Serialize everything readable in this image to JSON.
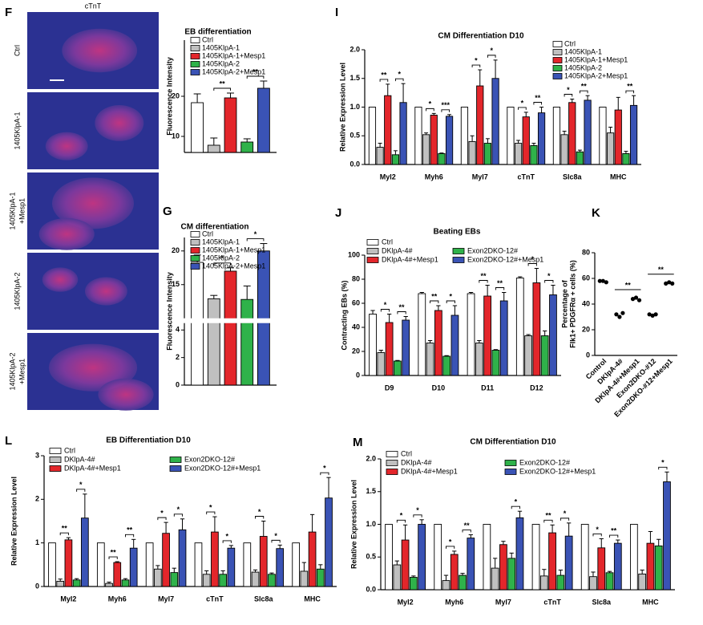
{
  "image_panel": {
    "panel_label": "F",
    "title": "cTnT",
    "rows": [
      [
        "Ctrl"
      ],
      [
        "1405KlpA-1"
      ],
      [
        "1405KlpA-1",
        "+Mesp1"
      ],
      [
        "1405KlpA-2"
      ],
      [
        "1405KlpA-2",
        "+Mesp1"
      ]
    ]
  },
  "chart_data": [
    {
      "type": "bar",
      "title": "EB differentiation",
      "y_label": "Fluorescence Intensity",
      "categories": [
        null
      ],
      "ylim": [
        6,
        34
      ],
      "yticks": [
        10,
        20
      ],
      "legend_columns": 1,
      "series": [
        {
          "name": "Ctrl",
          "color": "#ffffff",
          "values": [
            18.4
          ],
          "errors": [
            2.2
          ]
        },
        {
          "name": "1405KlpA-1",
          "color": "#c0c0c0",
          "values": [
            7.8
          ],
          "errors": [
            1.8
          ]
        },
        {
          "name": "1405KlpA-1+Mesp1",
          "color": "#e3262b",
          "values": [
            19.6
          ],
          "errors": [
            1.2
          ]
        },
        {
          "name": "1405KlpA-2",
          "color": "#2fb24a",
          "values": [
            8.6
          ],
          "errors": [
            0.8
          ]
        },
        {
          "name": "1405KlpA-2+Mesp1",
          "color": "#3a53b5",
          "values": [
            22
          ],
          "errors": [
            1.8
          ]
        }
      ],
      "annotations": [
        {
          "text": "**",
          "category": 0,
          "pair": [
            1,
            2
          ]
        },
        {
          "text": "**",
          "category": 0,
          "pair": [
            3,
            4
          ]
        }
      ]
    },
    {
      "type": "bar",
      "panel_label": "G",
      "title": "CM differentiation",
      "y_label": "Fluorescence Intensity",
      "categories": [
        null
      ],
      "ylim": [
        0,
        22
      ],
      "yticks": [
        0,
        2,
        4,
        15,
        20
      ],
      "axis_break": [
        4.5,
        10
      ],
      "legend_columns": 1,
      "series": [
        {
          "name": "Ctrl",
          "color": "#ffffff",
          "values": [
            18.3
          ],
          "errors": [
            1.1
          ]
        },
        {
          "name": "1405KlpA-1",
          "color": "#c0c0c0",
          "values": [
            12.9
          ],
          "errors": [
            0.5
          ]
        },
        {
          "name": "1405KlpA-1+Mesp1",
          "color": "#e3262b",
          "values": [
            17.0
          ],
          "errors": [
            0.5
          ]
        },
        {
          "name": "1405KlpA-2",
          "color": "#2fb24a",
          "values": [
            12.8
          ],
          "errors": [
            2.0
          ]
        },
        {
          "name": "1405KlpA-2+Mesp1",
          "color": "#3a53b5",
          "values": [
            20.0
          ],
          "errors": [
            1.1
          ]
        }
      ],
      "annotations": [
        {
          "text": "*",
          "category": 0,
          "pair": [
            1,
            2
          ]
        },
        {
          "text": "*",
          "category": 0,
          "pair": [
            3,
            4
          ]
        }
      ]
    },
    {
      "type": "bar",
      "panel_label": "I",
      "title": "CM Differentiation D10",
      "y_label": "Relative Expression Level",
      "categories": [
        "Myl2",
        "Myh6",
        "Myl7",
        "cTnT",
        "Slc8a",
        "MHC"
      ],
      "ylim": [
        0,
        2
      ],
      "yticks": [
        {
          "value": 0,
          "label": "0.0"
        },
        0.5,
        {
          "value": 1,
          "label": "1.0"
        },
        1.5,
        {
          "value": 2,
          "label": "2.0"
        }
      ],
      "legend_columns": 1,
      "series": [
        {
          "name": "Ctrl",
          "color": "#ffffff",
          "values": [
            1,
            1,
            1,
            1,
            1,
            1
          ]
        },
        {
          "name": "1405KlpA-1",
          "color": "#c0c0c0",
          "values": [
            0.3,
            0.52,
            0.4,
            0.37,
            0.52,
            0.55
          ],
          "errors": [
            0.07,
            0.03,
            0.1,
            0.05,
            0.06,
            0.1
          ]
        },
        {
          "name": "1405KlpA-1+Mesp1",
          "color": "#e3262b",
          "values": [
            1.2,
            0.86,
            1.37,
            0.83,
            1.08,
            0.95
          ],
          "errors": [
            0.2,
            0.03,
            0.28,
            0.08,
            0.06,
            0.22
          ]
        },
        {
          "name": "1405KlpA-2",
          "color": "#2fb24a",
          "values": [
            0.17,
            0.19,
            0.37,
            0.33,
            0.22,
            0.19
          ],
          "errors": [
            0.07,
            0.01,
            0.08,
            0.04,
            0.03,
            0.04
          ]
        },
        {
          "name": "1405KlpA-2+Mesp1",
          "color": "#3a53b5",
          "values": [
            1.08,
            0.84,
            1.5,
            0.9,
            1.12,
            1.03
          ],
          "errors": [
            0.33,
            0.03,
            0.32,
            0.1,
            0.08,
            0.17
          ]
        }
      ],
      "annotations": [
        {
          "text": "**",
          "category": 0,
          "pair": [
            1,
            2
          ]
        },
        {
          "text": "*",
          "category": 0,
          "pair": [
            3,
            4
          ]
        },
        {
          "text": "*",
          "category": 1,
          "pair": [
            1,
            2
          ]
        },
        {
          "text": "***",
          "category": 1,
          "pair": [
            3,
            4
          ]
        },
        {
          "text": "*",
          "category": 2,
          "pair": [
            1,
            2
          ]
        },
        {
          "text": "*",
          "category": 2,
          "pair": [
            3,
            4
          ]
        },
        {
          "text": "*",
          "category": 3,
          "pair": [
            1,
            2
          ]
        },
        {
          "text": "**",
          "category": 3,
          "pair": [
            3,
            4
          ]
        },
        {
          "text": "*",
          "category": 4,
          "pair": [
            1,
            2
          ]
        },
        {
          "text": "**",
          "category": 4,
          "pair": [
            3,
            4
          ]
        },
        {
          "text": "**",
          "category": 5,
          "pair": [
            3,
            4
          ]
        }
      ]
    },
    {
      "type": "bar",
      "panel_label": "J",
      "title": "Beating EBs",
      "y_label": "Contracting EBs (%)",
      "categories": [
        "D9",
        "D10",
        "D11",
        "D12"
      ],
      "ylim": [
        0,
        100
      ],
      "yticks": [
        0,
        20,
        40,
        60,
        80,
        100
      ],
      "legend_columns": 2,
      "series": [
        {
          "name": "Ctrl",
          "color": "#ffffff",
          "values": [
            51,
            68,
            68,
            81
          ],
          "errors": [
            3,
            1,
            1,
            1
          ]
        },
        {
          "name": "DKlpA-4#",
          "color": "#c0c0c0",
          "values": [
            19,
            27,
            27,
            33
          ],
          "errors": [
            2,
            2,
            2,
            1
          ]
        },
        {
          "name": "DKlpA-4#+Mesp1",
          "color": "#e3262b",
          "values": [
            44,
            54,
            66,
            77
          ],
          "errors": [
            7,
            4,
            9,
            12
          ]
        },
        {
          "name": "Exon2DKO-12#",
          "color": "#2fb24a",
          "values": [
            12,
            16,
            21,
            33
          ],
          "errors": [
            0.5,
            0.5,
            0.5,
            4
          ]
        },
        {
          "name": "Exon2DKO-12#+Mesp1",
          "color": "#3a53b5",
          "values": [
            46,
            50,
            62,
            67
          ],
          "errors": [
            3,
            8,
            7,
            8
          ]
        }
      ],
      "annotations": [
        {
          "text": "*",
          "category": 0,
          "pair": [
            1,
            2
          ]
        },
        {
          "text": "**",
          "category": 0,
          "pair": [
            3,
            4
          ]
        },
        {
          "text": "**",
          "category": 1,
          "pair": [
            1,
            2
          ]
        },
        {
          "text": "*",
          "category": 1,
          "pair": [
            3,
            4
          ]
        },
        {
          "text": "**",
          "category": 2,
          "pair": [
            1,
            2
          ]
        },
        {
          "text": "**",
          "category": 2,
          "pair": [
            3,
            4
          ]
        },
        {
          "text": "*",
          "category": 3,
          "pair": [
            1,
            2
          ]
        },
        {
          "text": "*",
          "category": 3,
          "pair": [
            3,
            4
          ]
        }
      ]
    },
    {
      "type": "dot",
      "panel_label": "K",
      "y_label": [
        "Percentage of",
        "Flk1+ PDGFRα + cells (%)"
      ],
      "categories": [
        "Control",
        "DKlpA-4#",
        "DKlpA-4#+Mesp1",
        "Exon2DKO-#12",
        "Exon2DKO-#12+Mesp1"
      ],
      "values": [
        [
          58,
          58,
          57
        ],
        [
          32,
          30,
          33
        ],
        [
          44,
          45,
          43
        ],
        [
          32,
          31,
          32
        ],
        [
          56,
          57,
          56
        ]
      ],
      "color": "#000000",
      "ylim": [
        0,
        80
      ],
      "yticks": [
        0,
        20,
        40,
        60,
        80
      ],
      "annotations": [
        {
          "text": "**",
          "pair": [
            1,
            2
          ]
        },
        {
          "text": "**",
          "pair": [
            3,
            4
          ]
        }
      ]
    },
    {
      "type": "bar",
      "panel_label": "L",
      "title": "EB Differentiation D10",
      "y_label": "Relative Expression Level",
      "categories": [
        "Myl2",
        "Myh6",
        "Myl7",
        "cTnT",
        "Slc8a",
        "MHC"
      ],
      "ylim": [
        0,
        3
      ],
      "yticks": [
        0,
        1,
        2,
        3
      ],
      "legend_columns": 2,
      "series": [
        {
          "name": "Ctrl",
          "color": "#ffffff",
          "values": [
            1,
            1,
            1,
            1,
            1,
            1
          ]
        },
        {
          "name": "DKlpA-4#",
          "color": "#c0c0c0",
          "values": [
            0.12,
            0.07,
            0.4,
            0.28,
            0.33,
            0.35
          ],
          "errors": [
            0.05,
            0.03,
            0.08,
            0.08,
            0.05,
            0.2
          ]
        },
        {
          "name": "DKlpA-4#+Mesp1",
          "color": "#e3262b",
          "values": [
            1.07,
            0.55,
            1.22,
            1.25,
            1.15,
            1.25
          ],
          "errors": [
            0.05,
            0.02,
            0.25,
            0.35,
            0.35,
            0.4
          ]
        },
        {
          "name": "Exon2DKO-12#",
          "color": "#2fb24a",
          "values": [
            0.15,
            0.15,
            0.32,
            0.28,
            0.28,
            0.4
          ],
          "errors": [
            0.03,
            0.03,
            0.1,
            0.08,
            0.03,
            0.1
          ]
        },
        {
          "name": "Exon2DKO-12#+Mesp1",
          "color": "#3a53b5",
          "values": [
            1.57,
            0.88,
            1.3,
            0.88,
            0.87,
            2.03
          ],
          "errors": [
            0.55,
            0.2,
            0.25,
            0.06,
            0.08,
            0.47
          ]
        }
      ],
      "annotations": [
        {
          "text": "**",
          "category": 0,
          "pair": [
            1,
            2
          ]
        },
        {
          "text": "*",
          "category": 0,
          "pair": [
            3,
            4
          ]
        },
        {
          "text": "**",
          "category": 1,
          "pair": [
            1,
            2
          ]
        },
        {
          "text": "**",
          "category": 1,
          "pair": [
            3,
            4
          ]
        },
        {
          "text": "*",
          "category": 2,
          "pair": [
            1,
            2
          ]
        },
        {
          "text": "*",
          "category": 2,
          "pair": [
            3,
            4
          ]
        },
        {
          "text": "*",
          "category": 3,
          "pair": [
            1,
            2
          ]
        },
        {
          "text": "*",
          "category": 3,
          "pair": [
            3,
            4
          ]
        },
        {
          "text": "*",
          "category": 4,
          "pair": [
            1,
            2
          ]
        },
        {
          "text": "*",
          "category": 4,
          "pair": [
            3,
            4
          ]
        },
        {
          "text": "*",
          "category": 5,
          "pair": [
            3,
            4
          ]
        }
      ]
    },
    {
      "type": "bar",
      "panel_label": "M",
      "title": "CM Differentiation D10",
      "y_label": "Relative Expression Level",
      "categories": [
        "Myl2",
        "Myh6",
        "Myl7",
        "cTnT",
        "Slc8a",
        "MHC"
      ],
      "ylim": [
        0,
        2
      ],
      "yticks": [
        {
          "value": 0,
          "label": "0.0"
        },
        0.5,
        {
          "value": 1,
          "label": "1.0"
        },
        1.5,
        {
          "value": 2,
          "label": "2.0"
        }
      ],
      "legend_columns": 2,
      "series": [
        {
          "name": "Ctrl",
          "color": "#ffffff",
          "values": [
            1,
            1,
            1,
            1,
            1,
            1
          ]
        },
        {
          "name": "DKlpA-4#",
          "color": "#c0c0c0",
          "values": [
            0.38,
            0.14,
            0.33,
            0.21,
            0.2,
            0.24
          ],
          "errors": [
            0.06,
            0.08,
            0.15,
            0.1,
            0.07,
            0.06
          ]
        },
        {
          "name": "DKlpA-4#+Mesp1",
          "color": "#e3262b",
          "values": [
            0.76,
            0.54,
            0.69,
            0.87,
            0.64,
            0.71
          ],
          "errors": [
            0.23,
            0.05,
            0.05,
            0.12,
            0.14,
            0.18
          ]
        },
        {
          "name": "Exon2DKO-12#",
          "color": "#2fb24a",
          "values": [
            0.19,
            0.22,
            0.48,
            0.22,
            0.26,
            0.67
          ],
          "errors": [
            0.02,
            0.03,
            0.08,
            0.08,
            0.02,
            0.1
          ]
        },
        {
          "name": "Exon2DKO-12#+Mesp1",
          "color": "#3a53b5",
          "values": [
            1.0,
            0.79,
            1.1,
            0.82,
            0.71,
            1.65
          ],
          "errors": [
            0.07,
            0.05,
            0.1,
            0.2,
            0.05,
            0.15
          ]
        }
      ],
      "annotations": [
        {
          "text": "*",
          "category": 0,
          "pair": [
            1,
            2
          ]
        },
        {
          "text": "*",
          "category": 0,
          "pair": [
            3,
            4
          ]
        },
        {
          "text": "*",
          "category": 1,
          "pair": [
            1,
            2
          ]
        },
        {
          "text": "**",
          "category": 1,
          "pair": [
            3,
            4
          ]
        },
        {
          "text": "*",
          "category": 2,
          "pair": [
            3,
            4
          ]
        },
        {
          "text": "**",
          "category": 3,
          "pair": [
            1,
            2
          ]
        },
        {
          "text": "*",
          "category": 3,
          "pair": [
            3,
            4
          ]
        },
        {
          "text": "*",
          "category": 4,
          "pair": [
            1,
            2
          ]
        },
        {
          "text": "**",
          "category": 4,
          "pair": [
            3,
            4
          ]
        },
        {
          "text": "*",
          "category": 5,
          "pair": [
            3,
            4
          ]
        }
      ]
    }
  ]
}
